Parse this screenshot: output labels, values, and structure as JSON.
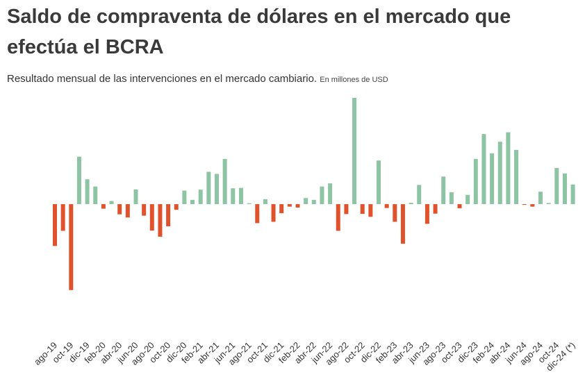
{
  "header": {
    "title": "Saldo de compraventa de dólares en el mercado que efectúa el BCRA",
    "subtitle": "Resultado  mensual de las intervenciones en el mercado cambiario.",
    "unit_note": "En millones de USD"
  },
  "colors": {
    "positive": "#8dc4a4",
    "negative": "#e0522c"
  },
  "chart_data": {
    "type": "bar",
    "title": "Saldo de compraventa de dólares en el mercado que efectúa el BCRA",
    "xlabel": "",
    "ylabel": "",
    "grid": false,
    "categories": [
      "ago-19",
      "sep-19",
      "oct-19",
      "nov-19",
      "dic-19",
      "ene-20",
      "feb-20",
      "mar-20",
      "abr-20",
      "may-20",
      "jun-20",
      "jul-20",
      "ago-20",
      "sep-20",
      "oct-20",
      "nov-20",
      "dic-20",
      "ene-21",
      "feb-21",
      "mar-21",
      "abr-21",
      "may-21",
      "jun-21",
      "jul-21",
      "ago-21",
      "sep-21",
      "oct-21",
      "nov-21",
      "dic-21",
      "ene-22",
      "feb-22",
      "mar-22",
      "abr-22",
      "may-22",
      "jun-22",
      "jul-22",
      "ago-22",
      "sep-22",
      "oct-22",
      "nov-22",
      "dic-22",
      "ene-23",
      "feb-23",
      "mar-23",
      "abr-23",
      "may-23",
      "jun-23",
      "jul-23",
      "ago-23",
      "sep-23",
      "oct-23",
      "nov-23",
      "dic-23",
      "ene-24",
      "feb-24",
      "mar-24",
      "abr-24",
      "may-24",
      "jun-24",
      "jul-24",
      "ago-24",
      "sep-24",
      "oct-24",
      "nov-24",
      "dic-24 (*)"
    ],
    "tick_labels": [
      "ago-19",
      "oct-19",
      "dic-19",
      "feb-20",
      "abr-20",
      "jun-20",
      "ago-20",
      "oct-20",
      "dic-20",
      "feb-21",
      "abr-21",
      "jun-21",
      "ago-21",
      "oct-21",
      "dic-21",
      "feb-22",
      "abr-22",
      "jun-22",
      "ago-22",
      "oct-22",
      "dic-22",
      "feb-23",
      "abr-23",
      "jun-23",
      "ago-23",
      "oct-23",
      "dic-23",
      "feb-24",
      "abr-24",
      "jun-24",
      "ago-24",
      "oct-24",
      "dic-24 (*)"
    ],
    "values": [
      -1850,
      -1180,
      -3800,
      2100,
      1100,
      780,
      -200,
      140,
      -450,
      -590,
      650,
      -510,
      -1170,
      -1440,
      -980,
      -250,
      600,
      190,
      640,
      1430,
      1340,
      2000,
      700,
      720,
      40,
      -840,
      220,
      -780,
      -400,
      -110,
      -150,
      270,
      190,
      780,
      920,
      -1180,
      -440,
      4700,
      -430,
      -560,
      1930,
      -170,
      -780,
      -1750,
      60,
      850,
      -870,
      -420,
      1220,
      530,
      -180,
      410,
      2000,
      3100,
      2250,
      2760,
      3180,
      2400,
      -20,
      -110,
      550,
      50,
      1600,
      1360,
      870
    ],
    "ylim": [
      -4850,
      4700
    ],
    "legend": "none"
  }
}
